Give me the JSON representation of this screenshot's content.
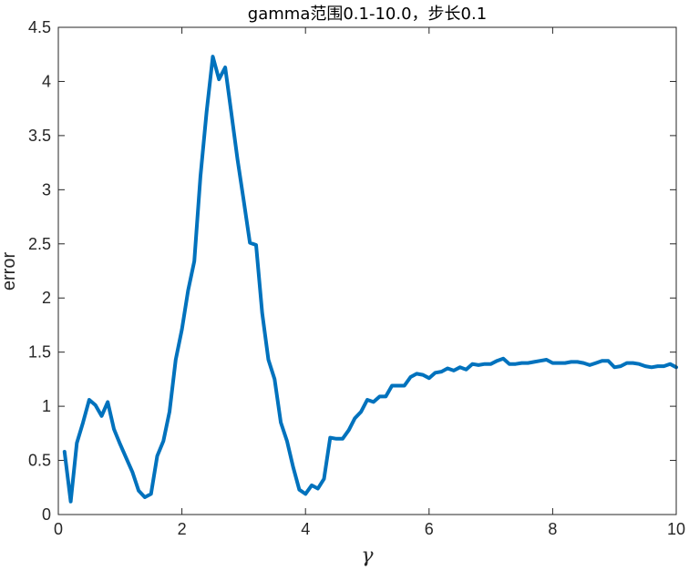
{
  "chart_data": {
    "type": "line",
    "title": "gamma范围0.1-10.0，步长0.1",
    "xlabel": "γ",
    "ylabel": "error",
    "xlim": [
      0,
      10
    ],
    "ylim": [
      0,
      4.5
    ],
    "x_ticks": [
      "0",
      "2",
      "4",
      "6",
      "8",
      "10"
    ],
    "y_ticks": [
      "0",
      "0.5",
      "1",
      "1.5",
      "2",
      "2.5",
      "3",
      "3.5",
      "4",
      "4.5"
    ],
    "grid": false,
    "line_color": "#0072BD",
    "series": [
      {
        "x": [
          0.1,
          0.2,
          0.3,
          0.4,
          0.5,
          0.6,
          0.7,
          0.8,
          0.9,
          1.0,
          1.1,
          1.2,
          1.3,
          1.4,
          1.5,
          1.6,
          1.7,
          1.8,
          1.9,
          2.0,
          2.1,
          2.2,
          2.3,
          2.4,
          2.5,
          2.6,
          2.7,
          2.8,
          2.9,
          3.0,
          3.1,
          3.2,
          3.3,
          3.4,
          3.5,
          3.6,
          3.7,
          3.8,
          3.9,
          4.0,
          4.1,
          4.2,
          4.3,
          4.4,
          4.5,
          4.6,
          4.7,
          4.8,
          4.9,
          5.0,
          5.1,
          5.2,
          5.3,
          5.4,
          5.5,
          5.6,
          5.7,
          5.8,
          5.9,
          6.0,
          6.1,
          6.2,
          6.3,
          6.4,
          6.5,
          6.6,
          6.7,
          6.8,
          6.9,
          7.0,
          7.1,
          7.2,
          7.3,
          7.4,
          7.5,
          7.6,
          7.7,
          7.8,
          7.9,
          8.0,
          8.1,
          8.2,
          8.3,
          8.4,
          8.5,
          8.6,
          8.7,
          8.8,
          8.9,
          9.0,
          9.1,
          9.2,
          9.3,
          9.4,
          9.5,
          9.6,
          9.7,
          9.8,
          9.9,
          10.0
        ],
        "y": [
          0.58,
          0.12,
          0.66,
          0.85,
          1.06,
          1.01,
          0.91,
          1.04,
          0.79,
          0.65,
          0.52,
          0.39,
          0.22,
          0.16,
          0.19,
          0.54,
          0.68,
          0.95,
          1.43,
          1.71,
          2.07,
          2.34,
          3.12,
          3.72,
          4.23,
          4.02,
          4.13,
          3.71,
          3.28,
          2.9,
          2.51,
          2.49,
          1.86,
          1.43,
          1.25,
          0.85,
          0.68,
          0.44,
          0.23,
          0.19,
          0.27,
          0.24,
          0.33,
          0.71,
          0.7,
          0.7,
          0.78,
          0.89,
          0.95,
          1.06,
          1.04,
          1.09,
          1.09,
          1.19,
          1.19,
          1.19,
          1.27,
          1.3,
          1.29,
          1.26,
          1.31,
          1.32,
          1.35,
          1.33,
          1.36,
          1.34,
          1.39,
          1.38,
          1.39,
          1.39,
          1.42,
          1.44,
          1.39,
          1.39,
          1.4,
          1.4,
          1.41,
          1.42,
          1.43,
          1.4,
          1.4,
          1.4,
          1.41,
          1.41,
          1.4,
          1.38,
          1.4,
          1.42,
          1.42,
          1.36,
          1.37,
          1.4,
          1.4,
          1.39,
          1.37,
          1.36,
          1.37,
          1.37,
          1.39,
          1.36
        ]
      }
    ]
  }
}
